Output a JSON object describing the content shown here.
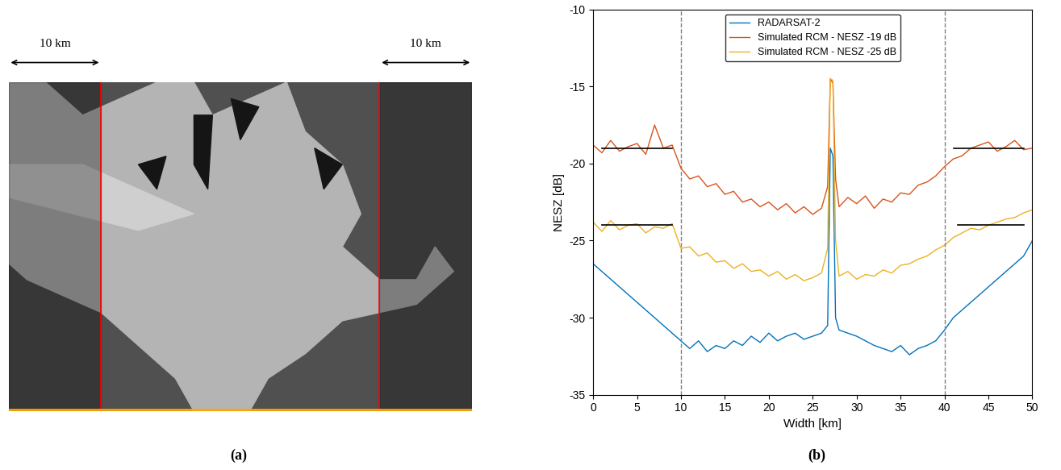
{
  "panel_a": {
    "label": "(a)",
    "scale_labels": [
      "10 km",
      "10 km"
    ],
    "xlim": [
      0,
      50
    ],
    "red_lines": [
      10,
      40
    ]
  },
  "chart_data": {
    "type": "line",
    "panel_label": "(b)",
    "xlabel": "Width [km]",
    "ylabel": "NESZ [dB]",
    "x": [
      0,
      1,
      2,
      3,
      4,
      5,
      6,
      7,
      8,
      9,
      10,
      11,
      12,
      13,
      14,
      15,
      16,
      17,
      18,
      19,
      20,
      21,
      22,
      23,
      24,
      25,
      26,
      26.7,
      27,
      27.3,
      27.6,
      28,
      29,
      30,
      31,
      32,
      33,
      34,
      35,
      36,
      37,
      38,
      39,
      40,
      41,
      42,
      43,
      44,
      45,
      46,
      47,
      48,
      49,
      50
    ],
    "series": [
      {
        "name": "RADARSAT-2",
        "color": "#0072BD",
        "values": [
          -26.5,
          -27.0,
          -27.5,
          -28.0,
          -28.5,
          -29.0,
          -29.5,
          -30.0,
          -30.5,
          -31.0,
          -31.5,
          -32.0,
          -31.5,
          -32.2,
          -31.8,
          -32.0,
          -31.5,
          -31.8,
          -31.2,
          -31.6,
          -31.0,
          -31.5,
          -31.2,
          -31.0,
          -31.4,
          -31.2,
          -31.0,
          -30.5,
          -19.0,
          -19.5,
          -30.0,
          -30.8,
          -31.0,
          -31.2,
          -31.5,
          -31.8,
          -32.0,
          -32.2,
          -31.8,
          -32.4,
          -32.0,
          -31.8,
          -31.5,
          -30.8,
          -30.0,
          -29.5,
          -29.0,
          -28.5,
          -28.0,
          -27.5,
          -27.0,
          -26.5,
          -26.0,
          -25.0
        ]
      },
      {
        "name": "Simulated RCM - NESZ -19 dB",
        "color": "#D95319",
        "values": [
          -18.8,
          -19.3,
          -18.5,
          -19.2,
          -18.9,
          -18.7,
          -19.4,
          -17.5,
          -19.0,
          -18.8,
          -20.3,
          -21.0,
          -20.8,
          -21.5,
          -21.3,
          -22.0,
          -21.8,
          -22.5,
          -22.3,
          -22.8,
          -22.5,
          -23.0,
          -22.6,
          -23.2,
          -22.8,
          -23.3,
          -22.9,
          -21.5,
          -14.5,
          -14.8,
          -21.0,
          -22.8,
          -22.2,
          -22.6,
          -22.1,
          -22.9,
          -22.3,
          -22.5,
          -21.9,
          -22.0,
          -21.4,
          -21.2,
          -20.8,
          -20.2,
          -19.7,
          -19.5,
          -19.0,
          -18.8,
          -18.6,
          -19.2,
          -18.9,
          -18.5,
          -19.1,
          -19.0
        ]
      },
      {
        "name": "Simulated RCM - NESZ -25 dB",
        "color": "#EDB120",
        "values": [
          -23.8,
          -24.4,
          -23.7,
          -24.3,
          -24.0,
          -23.9,
          -24.5,
          -24.1,
          -24.2,
          -23.9,
          -25.5,
          -25.4,
          -26.0,
          -25.8,
          -26.4,
          -26.3,
          -26.8,
          -26.5,
          -27.0,
          -26.9,
          -27.3,
          -27.0,
          -27.5,
          -27.2,
          -27.6,
          -27.4,
          -27.1,
          -25.5,
          -14.5,
          -14.6,
          -25.0,
          -27.3,
          -27.0,
          -27.5,
          -27.2,
          -27.3,
          -26.9,
          -27.1,
          -26.6,
          -26.5,
          -26.2,
          -26.0,
          -25.6,
          -25.3,
          -24.8,
          -24.5,
          -24.2,
          -24.3,
          -24.0,
          -23.8,
          -23.6,
          -23.5,
          -23.2,
          -23.0
        ]
      }
    ],
    "vlines": [
      10,
      40
    ],
    "reference_lines": [
      {
        "x": [
          1,
          9
        ],
        "y": -19
      },
      {
        "x": [
          41,
          49
        ],
        "y": -19
      },
      {
        "x": [
          1,
          9
        ],
        "y": -24
      },
      {
        "x": [
          41.5,
          49
        ],
        "y": -24
      }
    ],
    "xlim": [
      0,
      50
    ],
    "ylim": [
      -35,
      -10
    ],
    "xticks": [
      0,
      5,
      10,
      15,
      20,
      25,
      30,
      35,
      40,
      45,
      50
    ],
    "yticks": [
      -35,
      -30,
      -25,
      -20,
      -15,
      -10
    ],
    "legend": "upper center"
  }
}
